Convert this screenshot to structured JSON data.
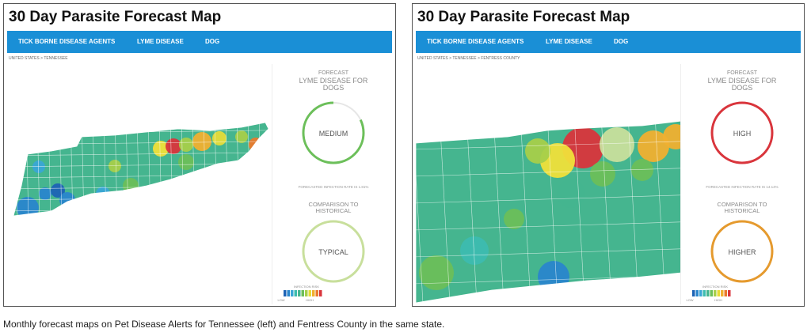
{
  "panels": [
    {
      "title": "30 Day Parasite Forecast Map",
      "nav": [
        "TICK BORNE DISEASE AGENTS",
        "LYME DISEASE",
        "DOG"
      ],
      "breadcrumb": "UNITED STATES > TENNESSEE",
      "forecast": {
        "label": "FORECAST",
        "heading": "LYME DISEASE FOR DOGS",
        "level": "MEDIUM",
        "rate": "FORECASTED INFECTION RATE IS 1.81%"
      },
      "comparison": {
        "heading": "COMPARISON TO HISTORICAL",
        "level": "TYPICAL"
      },
      "legend": {
        "title": "INFECTION RISK",
        "low": "LOW",
        "high": "HIGH"
      }
    },
    {
      "title": "30 Day Parasite Forecast Map",
      "nav": [
        "TICK BORNE DISEASE AGENTS",
        "LYME DISEASE",
        "DOG"
      ],
      "breadcrumb": "UNITED STATES > TENNESSEE > FENTRESS COUNTY",
      "forecast": {
        "label": "FORECAST",
        "heading": "LYME DISEASE FOR DOGS",
        "level": "HIGH",
        "rate": "FORECASTED INFECTION RATE IS 14.14%"
      },
      "comparison": {
        "heading": "COMPARISON TO HISTORICAL",
        "level": "HIGHER"
      },
      "legend": {
        "title": "INFECTION RISK",
        "low": "LOW",
        "high": "HIGH"
      }
    }
  ],
  "caption": "Monthly forecast maps on Pet Disease Alerts for Tennessee (left) and Fentress County in the same state."
}
